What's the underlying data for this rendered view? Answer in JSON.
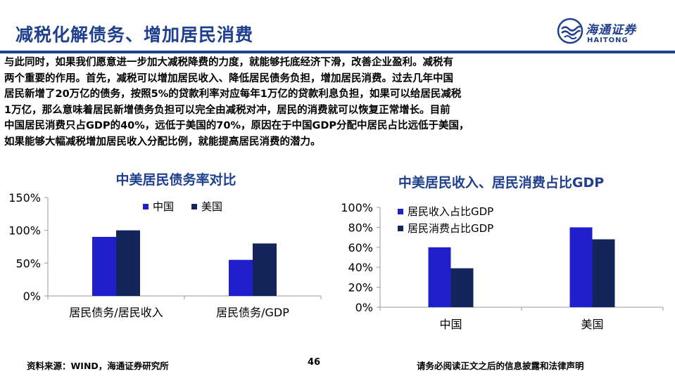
{
  "slide": {
    "title": "减税化解债务、增加居民消费",
    "logo_cn": "海通证券",
    "logo_en": "HAITONG",
    "paragraph": [
      "与此同时，如果我们愿意进一步加大减税降费的力度，就能够托底经济下滑，改善企业盈利。减税有",
      "两个重要的作用。首先，减税可以增加居民收入、降低居民债务负担，增加居民消费。过去几年中国",
      "居民新增了20万亿的债务，按照5%的贷款利率对应每年1万亿的贷款利息负担，如果可以给居民减税",
      "1万亿，那么意味着居民新增债务负担可以完全由减税对冲，居民的消费就可以恢复正常增长。目前",
      "中国居民消费只占GDP的40%，远低于美国的70%，原因在于中国GDP分配中居民占比远低于美国，",
      "如果能够大幅减税增加居民收入分配比例，就能提高居民消费的潜力。"
    ],
    "footer_source": "资料来源：WIND，海通证券研究所",
    "page_number": "46",
    "footer_note": "请务必阅读正文之后的信息披露和法律声明"
  },
  "colors": {
    "brand": "#1f3f8f",
    "series_a": "#1f1fcc",
    "series_b": "#14255c"
  },
  "chart_data": [
    {
      "type": "bar",
      "title": "中美居民债务率对比",
      "categories": [
        "居民债务/居民收入",
        "居民债务/GDP"
      ],
      "series": [
        {
          "name": "中国",
          "values": [
            90,
            55
          ]
        },
        {
          "name": "美国",
          "values": [
            100,
            80
          ]
        }
      ],
      "ylim": [
        0,
        150
      ],
      "yticks": [
        "0%",
        "50%",
        "100%",
        "150%"
      ],
      "grid": false,
      "legend": "top"
    },
    {
      "type": "bar",
      "title": "中美居民收入、居民消费占比GDP",
      "categories": [
        "中国",
        "美国"
      ],
      "series": [
        {
          "name": "居民收入占比GDP",
          "values": [
            60,
            80
          ]
        },
        {
          "name": "居民消费占比GDP",
          "values": [
            39,
            68
          ]
        }
      ],
      "ylim": [
        0,
        100
      ],
      "yticks": [
        "0%",
        "20%",
        "40%",
        "60%",
        "80%",
        "100%"
      ],
      "grid": false,
      "legend": "top-left"
    }
  ]
}
